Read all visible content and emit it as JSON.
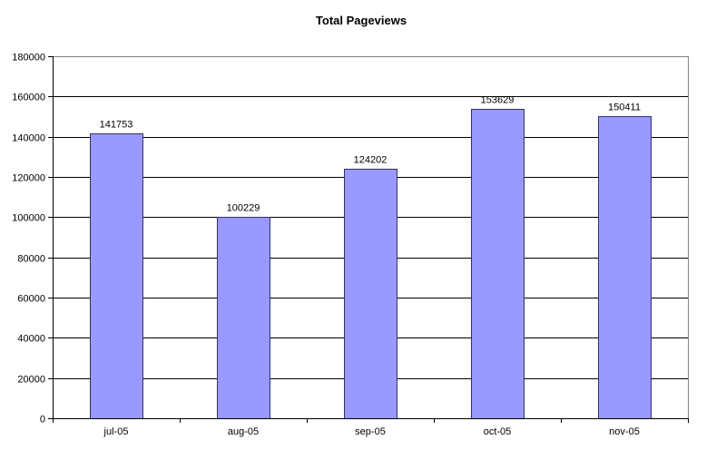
{
  "chart_data": {
    "type": "bar",
    "title": "Total Pageviews",
    "xlabel": "",
    "ylabel": "",
    "categories": [
      "jul-05",
      "aug-05",
      "sep-05",
      "oct-05",
      "nov-05"
    ],
    "values": [
      141753,
      100229,
      124202,
      153629,
      150411
    ],
    "data_labels": [
      "141753",
      "100229",
      "124202",
      "153629",
      "150411"
    ],
    "ylim": [
      0,
      180000
    ],
    "yticks": [
      0,
      20000,
      40000,
      60000,
      80000,
      100000,
      120000,
      140000,
      160000,
      180000
    ],
    "ytick_labels": [
      "0",
      "20000",
      "40000",
      "60000",
      "80000",
      "100000",
      "120000",
      "140000",
      "160000",
      "180000"
    ],
    "grid": true,
    "legend": "none",
    "colors": {
      "bar_fill": "#9999ff",
      "bar_stroke": "#333366",
      "grid": "#000000",
      "plot_border": "#808080",
      "background": "#ffffff"
    }
  }
}
